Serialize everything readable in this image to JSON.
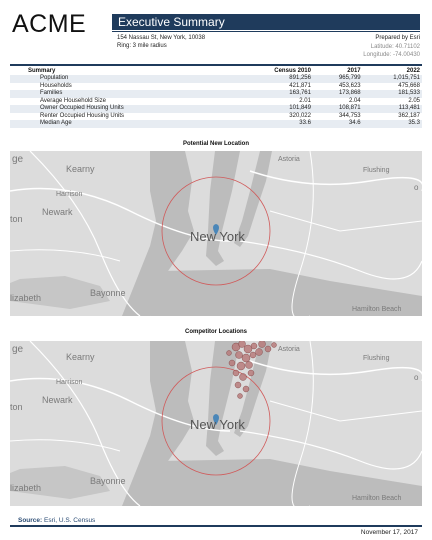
{
  "header": {
    "logo": "ACME",
    "title": "Executive Summary",
    "address": "154 Nassau St, New York, 10038",
    "ring": "Ring: 3 mile radius",
    "prepared_by": "Prepared by Esri",
    "latitude": "Latitude: 40.71102",
    "longitude": "Longitude: -74.00430"
  },
  "table": {
    "headers": [
      "Summary",
      "Census 2010",
      "2017",
      "2022"
    ],
    "rows": [
      [
        "Population",
        "891,256",
        "965,799",
        "1,015,751"
      ],
      [
        "Households",
        "421,871",
        "453,623",
        "475,668"
      ],
      [
        "Families",
        "163,761",
        "173,868",
        "181,533"
      ],
      [
        "Average Household Size",
        "2.01",
        "2.04",
        "2.05"
      ],
      [
        "Owner Occupied Housing Units",
        "101,849",
        "108,871",
        "113,481"
      ],
      [
        "Renter Occupied Housing Units",
        "320,022",
        "344,753",
        "362,187"
      ],
      [
        "Median Age",
        "33.6",
        "34.6",
        "35.3"
      ]
    ]
  },
  "map1": {
    "caption": "Potential New Location",
    "labels": {
      "kearny": "Kearny",
      "harrison": "Harrison",
      "newark": "Newark",
      "ton": "ton",
      "astoria": "Astoria",
      "flushing": "Flushing",
      "ge": "ge",
      "o": "o",
      "new_york": "New York",
      "bayonne": "Bayonne",
      "elizabeth": "lizabeth",
      "hamilton_beach": "Hamilton Beach"
    }
  },
  "map2": {
    "caption": "Competitor Locations",
    "labels": {
      "kearny": "Kearny",
      "harrison": "Harrison",
      "newark": "Newark",
      "ton": "ton",
      "astoria": "Astoria",
      "flushing": "Flushing",
      "ge": "ge",
      "o": "o",
      "new_york": "New York",
      "bayonne": "Bayonne",
      "elizabeth": "lizabeth",
      "hamilton_beach": "Hamilton Beach"
    }
  },
  "footer": {
    "source_label": "Source:",
    "source_value": "Esri, U.S. Census",
    "date": "November 17, 2017"
  },
  "colors": {
    "accent": "#1f3b5c",
    "ring": "#d05a5a",
    "water": "#bcbcbc",
    "land": "#dcdcdc",
    "competitor": "#b77b7b"
  }
}
